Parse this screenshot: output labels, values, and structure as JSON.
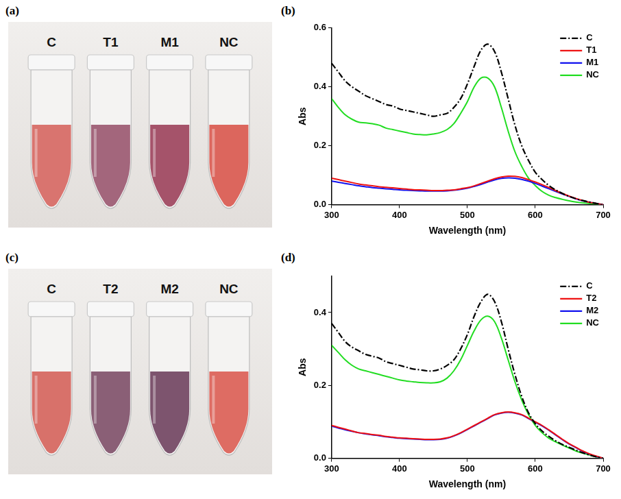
{
  "photos": [
    {
      "panel": "(a)",
      "tubes": [
        {
          "label": "C",
          "color": "#d9746f"
        },
        {
          "label": "T1",
          "color": "#a3667c"
        },
        {
          "label": "M1",
          "color": "#a5536a"
        },
        {
          "label": "NC",
          "color": "#dc665d"
        }
      ]
    },
    {
      "panel": "(c)",
      "tubes": [
        {
          "label": "C",
          "color": "#d8716a"
        },
        {
          "label": "T2",
          "color": "#8a5f76"
        },
        {
          "label": "M2",
          "color": "#7d546e"
        },
        {
          "label": "NC",
          "color": "#de6c63"
        }
      ]
    }
  ],
  "chart_data": [
    {
      "panel": "(b)",
      "type": "line",
      "x_label": "Wavelength (nm)",
      "y_label": "Abs",
      "x": [
        300,
        310,
        320,
        330,
        340,
        350,
        360,
        370,
        380,
        390,
        400,
        410,
        420,
        430,
        440,
        450,
        460,
        470,
        480,
        490,
        500,
        510,
        520,
        530,
        540,
        550,
        560,
        570,
        580,
        590,
        600,
        610,
        620,
        630,
        640,
        650,
        660,
        670,
        680,
        690,
        700
      ],
      "series": [
        {
          "name": "C",
          "color": "#000000",
          "line_style": "dashdot",
          "values": [
            0.48,
            0.45,
            0.42,
            0.4,
            0.385,
            0.37,
            0.36,
            0.35,
            0.34,
            0.335,
            0.325,
            0.32,
            0.315,
            0.31,
            0.305,
            0.3,
            0.305,
            0.31,
            0.33,
            0.36,
            0.41,
            0.47,
            0.525,
            0.545,
            0.52,
            0.45,
            0.36,
            0.27,
            0.2,
            0.15,
            0.11,
            0.085,
            0.065,
            0.05,
            0.038,
            0.028,
            0.02,
            0.014,
            0.009,
            0.004,
            0
          ]
        },
        {
          "name": "T1",
          "color": "#ee1111",
          "line_style": "solid",
          "values": [
            0.09,
            0.085,
            0.08,
            0.075,
            0.07,
            0.067,
            0.064,
            0.061,
            0.059,
            0.057,
            0.055,
            0.053,
            0.051,
            0.05,
            0.049,
            0.048,
            0.048,
            0.049,
            0.05,
            0.054,
            0.058,
            0.064,
            0.072,
            0.08,
            0.088,
            0.094,
            0.097,
            0.096,
            0.092,
            0.085,
            0.077,
            0.068,
            0.058,
            0.048,
            0.038,
            0.029,
            0.021,
            0.014,
            0.008,
            0.004,
            0
          ]
        },
        {
          "name": "M1",
          "color": "#1111ee",
          "line_style": "solid",
          "values": [
            0.08,
            0.076,
            0.072,
            0.068,
            0.064,
            0.061,
            0.058,
            0.056,
            0.054,
            0.052,
            0.05,
            0.049,
            0.048,
            0.047,
            0.046,
            0.046,
            0.046,
            0.047,
            0.049,
            0.052,
            0.056,
            0.062,
            0.069,
            0.077,
            0.084,
            0.089,
            0.091,
            0.09,
            0.086,
            0.08,
            0.072,
            0.063,
            0.054,
            0.045,
            0.036,
            0.028,
            0.02,
            0.013,
            0.008,
            0.004,
            0
          ]
        },
        {
          "name": "NC",
          "color": "#22dd22",
          "line_style": "solid",
          "values": [
            0.36,
            0.33,
            0.305,
            0.29,
            0.28,
            0.278,
            0.275,
            0.27,
            0.26,
            0.255,
            0.25,
            0.245,
            0.24,
            0.238,
            0.237,
            0.24,
            0.245,
            0.255,
            0.275,
            0.31,
            0.35,
            0.4,
            0.43,
            0.43,
            0.4,
            0.33,
            0.25,
            0.18,
            0.13,
            0.09,
            0.065,
            0.045,
            0.032,
            0.024,
            0.018,
            0.013,
            0.009,
            0.006,
            0.004,
            0.002,
            0
          ]
        }
      ],
      "xlim": [
        300,
        700
      ],
      "xticks": [
        300,
        400,
        500,
        600,
        700
      ],
      "ylim": [
        0,
        0.6
      ],
      "yticks": [
        {
          "value": 0,
          "label": "0.0"
        },
        0.2,
        0.4,
        0.6
      ],
      "grid": false,
      "legend": "upper right"
    },
    {
      "panel": "(d)",
      "type": "line",
      "x_label": "Wavelength (nm)",
      "y_label": "Abs",
      "x": [
        300,
        310,
        320,
        330,
        340,
        350,
        360,
        370,
        380,
        390,
        400,
        410,
        420,
        430,
        440,
        450,
        460,
        470,
        480,
        490,
        500,
        510,
        520,
        530,
        540,
        550,
        560,
        570,
        580,
        590,
        600,
        610,
        620,
        630,
        640,
        650,
        660,
        670,
        680,
        690,
        700
      ],
      "series": [
        {
          "name": "C",
          "color": "#000000",
          "line_style": "dashdot",
          "values": [
            0.37,
            0.345,
            0.32,
            0.305,
            0.295,
            0.285,
            0.28,
            0.275,
            0.265,
            0.26,
            0.255,
            0.25,
            0.245,
            0.243,
            0.24,
            0.24,
            0.245,
            0.255,
            0.27,
            0.3,
            0.34,
            0.39,
            0.43,
            0.45,
            0.43,
            0.375,
            0.3,
            0.23,
            0.17,
            0.125,
            0.095,
            0.075,
            0.06,
            0.048,
            0.038,
            0.03,
            0.022,
            0.015,
            0.009,
            0.004,
            0
          ]
        },
        {
          "name": "T2",
          "color": "#ee1111",
          "line_style": "solid",
          "values": [
            0.09,
            0.085,
            0.08,
            0.075,
            0.07,
            0.068,
            0.065,
            0.063,
            0.06,
            0.058,
            0.056,
            0.055,
            0.054,
            0.053,
            0.052,
            0.052,
            0.053,
            0.056,
            0.062,
            0.07,
            0.08,
            0.09,
            0.1,
            0.11,
            0.12,
            0.125,
            0.127,
            0.125,
            0.12,
            0.11,
            0.1,
            0.09,
            0.078,
            0.065,
            0.052,
            0.04,
            0.03,
            0.02,
            0.012,
            0.006,
            0
          ]
        },
        {
          "name": "M2",
          "color": "#1111ee",
          "line_style": "solid",
          "values": [
            0.088,
            0.083,
            0.078,
            0.074,
            0.07,
            0.067,
            0.064,
            0.062,
            0.059,
            0.057,
            0.055,
            0.054,
            0.053,
            0.052,
            0.051,
            0.051,
            0.052,
            0.055,
            0.061,
            0.069,
            0.079,
            0.089,
            0.099,
            0.109,
            0.119,
            0.124,
            0.126,
            0.124,
            0.119,
            0.109,
            0.099,
            0.089,
            0.077,
            0.064,
            0.051,
            0.039,
            0.029,
            0.019,
            0.011,
            0.005,
            0
          ]
        },
        {
          "name": "NC",
          "color": "#22dd22",
          "line_style": "solid",
          "values": [
            0.31,
            0.29,
            0.27,
            0.255,
            0.245,
            0.24,
            0.235,
            0.23,
            0.225,
            0.22,
            0.215,
            0.212,
            0.21,
            0.208,
            0.207,
            0.207,
            0.21,
            0.22,
            0.24,
            0.27,
            0.31,
            0.35,
            0.38,
            0.39,
            0.375,
            0.33,
            0.27,
            0.21,
            0.16,
            0.12,
            0.09,
            0.07,
            0.055,
            0.045,
            0.036,
            0.028,
            0.02,
            0.014,
            0.009,
            0.004,
            0
          ]
        }
      ],
      "xlim": [
        300,
        700
      ],
      "xticks": [
        300,
        400,
        500,
        600,
        700
      ],
      "ylim": [
        0,
        0.5
      ],
      "yticks": [
        {
          "value": 0,
          "label": "0.0"
        },
        0.2,
        0.4
      ],
      "grid": false,
      "legend": "upper right"
    }
  ]
}
